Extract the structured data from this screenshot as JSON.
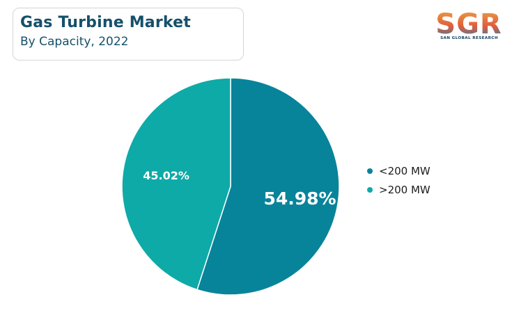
{
  "header": {
    "title": "Gas Turbine Market",
    "subtitle": "By Capacity, 2022"
  },
  "logo": {
    "text": "SGR",
    "tagline": "SAN GLOBAL RESEARCH",
    "colors": [
      "#e8a445",
      "#e35d3c",
      "#1f7fae"
    ]
  },
  "chart_data": {
    "type": "pie",
    "title": "Gas Turbine Market",
    "subtitle": "By Capacity, 2022",
    "legend_position": "right",
    "slices": [
      {
        "label": "<200 MW",
        "value": 54.98,
        "display": "54.98%",
        "color": "#07849a"
      },
      {
        "label": ">200 MW",
        "value": 45.02,
        "display": "45.02%",
        "color": "#0eaaa8"
      }
    ]
  }
}
